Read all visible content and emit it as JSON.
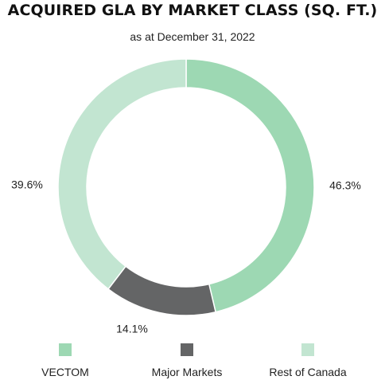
{
  "chart_data": {
    "type": "pie",
    "variant": "donut",
    "title": "ACQUIRED GLA BY MARKET CLASS (SQ. FT.)",
    "subtitle": "as at December 31, 2022",
    "start_angle_deg": 0,
    "direction": "clockwise",
    "legend_position": "bottom",
    "slices": [
      {
        "name": "VECTOM",
        "value": 46.3,
        "label": "46.3%",
        "color": "#9dd8b3"
      },
      {
        "name": "Major Markets",
        "value": 14.1,
        "label": "14.1%",
        "color": "#646566"
      },
      {
        "name": "Rest of Canada",
        "value": 39.6,
        "label": "39.6%",
        "color": "#c2e5d1"
      }
    ]
  }
}
